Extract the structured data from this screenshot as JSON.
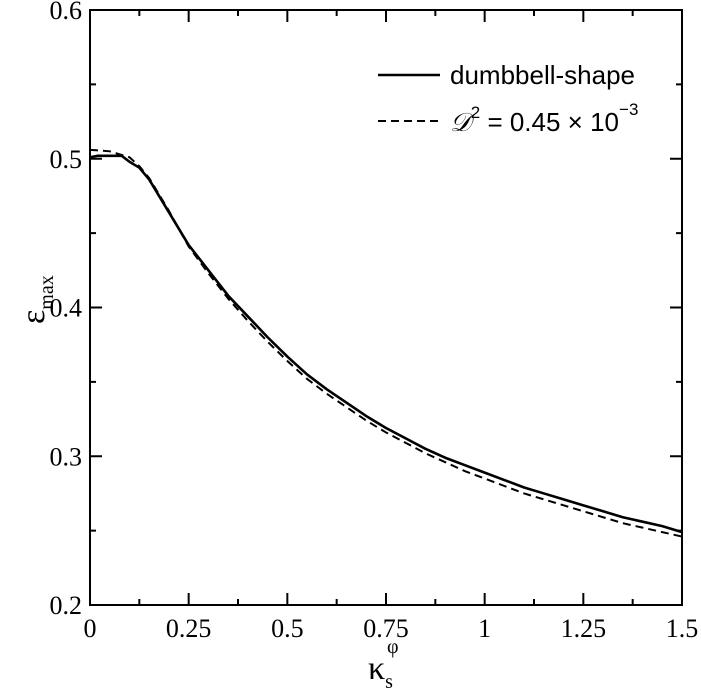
{
  "chart_data": {
    "type": "line",
    "xlim": [
      0,
      1.5
    ],
    "ylim": [
      0.2,
      0.6
    ],
    "x_ticks": [
      "0",
      "0.25",
      "0.5",
      "0.75",
      "1",
      "1.25",
      "1.5"
    ],
    "y_ticks": [
      "0.2",
      "0.3",
      "0.4",
      "0.5",
      "0.6"
    ],
    "xlabel": {
      "main": "κ",
      "sub": "s",
      "sup": "φ"
    },
    "ylabel": {
      "main": "ε",
      "sub": "max"
    },
    "legend_position": "top-right",
    "grid": false,
    "series": [
      {
        "name": "dumbbell-shape",
        "style": "solid",
        "color": "#000000",
        "x": [
          0,
          0.02,
          0.05,
          0.08,
          0.1,
          0.125,
          0.15,
          0.175,
          0.2,
          0.225,
          0.25,
          0.3,
          0.35,
          0.4,
          0.45,
          0.5,
          0.55,
          0.6,
          0.65,
          0.7,
          0.75,
          0.8,
          0.85,
          0.9,
          0.95,
          1.0,
          1.05,
          1.1,
          1.15,
          1.2,
          1.25,
          1.3,
          1.35,
          1.4,
          1.45,
          1.5
        ],
        "y": [
          0.501,
          0.502,
          0.502,
          0.502,
          0.498,
          0.494,
          0.486,
          0.475,
          0.464,
          0.453,
          0.442,
          0.425,
          0.408,
          0.394,
          0.38,
          0.367,
          0.355,
          0.345,
          0.336,
          0.327,
          0.319,
          0.312,
          0.305,
          0.299,
          0.294,
          0.289,
          0.284,
          0.279,
          0.275,
          0.271,
          0.267,
          0.263,
          0.259,
          0.256,
          0.253,
          0.249
        ]
      },
      {
        "name": "𝒟² = 0.45 × 10⁻³",
        "style": "dashed",
        "color": "#000000",
        "x": [
          0,
          0.05,
          0.1,
          0.125,
          0.15,
          0.175,
          0.2,
          0.225,
          0.25,
          0.3,
          0.35,
          0.4,
          0.45,
          0.5,
          0.55,
          0.6,
          0.65,
          0.7,
          0.75,
          0.8,
          0.85,
          0.9,
          0.95,
          1.0,
          1.05,
          1.1,
          1.15,
          1.2,
          1.25,
          1.3,
          1.35,
          1.4,
          1.45,
          1.5
        ],
        "y": [
          0.506,
          0.505,
          0.501,
          0.495,
          0.487,
          0.476,
          0.465,
          0.453,
          0.441,
          0.423,
          0.406,
          0.391,
          0.377,
          0.364,
          0.352,
          0.342,
          0.333,
          0.324,
          0.316,
          0.309,
          0.302,
          0.296,
          0.29,
          0.285,
          0.28,
          0.275,
          0.271,
          0.267,
          0.263,
          0.259,
          0.255,
          0.252,
          0.249,
          0.246
        ]
      }
    ],
    "legend": {
      "entry1": "dumbbell-shape",
      "entry2_script": "𝒟",
      "entry2_sup": "2",
      "entry2_text": " = 0.45 × 10",
      "entry2_exp": "−3"
    }
  }
}
